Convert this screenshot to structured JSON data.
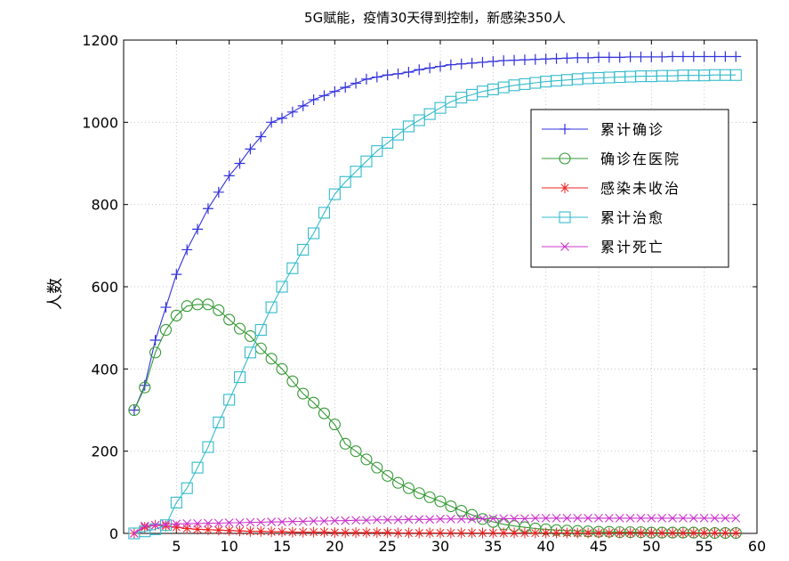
{
  "chart_data": {
    "type": "line",
    "title": "5G赋能，疫情30天得到控制，新感染350人",
    "xlabel": "",
    "ylabel": "人数",
    "xlim": [
      0,
      60
    ],
    "ylim": [
      0,
      1200
    ],
    "xticks": [
      5,
      10,
      15,
      20,
      25,
      30,
      35,
      40,
      45,
      50,
      55,
      60
    ],
    "yticks": [
      0,
      200,
      400,
      600,
      800,
      1000,
      1200
    ],
    "grid": true,
    "legend_position": "upper-right",
    "x": [
      1,
      2,
      3,
      4,
      5,
      6,
      7,
      8,
      9,
      10,
      11,
      12,
      13,
      14,
      15,
      16,
      17,
      18,
      19,
      20,
      21,
      22,
      23,
      24,
      25,
      26,
      27,
      28,
      29,
      30,
      31,
      32,
      33,
      34,
      35,
      36,
      37,
      38,
      39,
      40,
      41,
      42,
      43,
      44,
      45,
      46,
      47,
      48,
      49,
      50,
      51,
      52,
      53,
      54,
      55,
      56,
      57,
      58
    ],
    "series": [
      {
        "name": "累计确诊",
        "color": "#3333dd",
        "marker": "plus",
        "values": [
          300,
          360,
          470,
          550,
          630,
          690,
          740,
          790,
          830,
          870,
          900,
          935,
          965,
          1000,
          1010,
          1025,
          1040,
          1055,
          1065,
          1075,
          1085,
          1095,
          1105,
          1110,
          1115,
          1118,
          1122,
          1128,
          1132,
          1136,
          1140,
          1142,
          1144,
          1146,
          1148,
          1150,
          1151,
          1152,
          1153,
          1154,
          1155,
          1156,
          1157,
          1157,
          1158,
          1158,
          1158,
          1159,
          1159,
          1159,
          1159,
          1160,
          1160,
          1160,
          1160,
          1160,
          1160,
          1160
        ]
      },
      {
        "name": "确诊在医院",
        "color": "#339933",
        "marker": "circle",
        "values": [
          300,
          355,
          440,
          495,
          530,
          553,
          557,
          557,
          543,
          520,
          498,
          480,
          450,
          425,
          400,
          370,
          340,
          318,
          292,
          265,
          218,
          200,
          180,
          160,
          140,
          123,
          110,
          98,
          88,
          78,
          66,
          55,
          45,
          35,
          28,
          22,
          18,
          15,
          12,
          10,
          8,
          7,
          6,
          5,
          4,
          4,
          3,
          3,
          3,
          2,
          2,
          2,
          2,
          2,
          1,
          1,
          1,
          1
        ]
      },
      {
        "name": "感染未收治",
        "color": "#ee2222",
        "marker": "asterisk",
        "values": [
          0,
          15,
          20,
          18,
          15,
          12,
          10,
          9,
          8,
          7,
          6,
          5,
          5,
          4,
          4,
          3,
          3,
          3,
          3,
          2,
          2,
          2,
          2,
          2,
          2,
          1,
          1,
          1,
          1,
          1,
          1,
          1,
          1,
          1,
          1,
          1,
          1,
          1,
          1,
          1,
          1,
          1,
          1,
          1,
          1,
          1,
          1,
          1,
          1,
          1,
          1,
          1,
          1,
          1,
          1,
          1,
          1,
          1
        ]
      },
      {
        "name": "累计治愈",
        "color": "#33bbcc",
        "marker": "square",
        "values": [
          0,
          5,
          10,
          20,
          75,
          110,
          160,
          210,
          270,
          325,
          380,
          440,
          495,
          550,
          600,
          645,
          690,
          730,
          780,
          825,
          855,
          880,
          905,
          930,
          950,
          970,
          990,
          1005,
          1020,
          1035,
          1050,
          1060,
          1067,
          1075,
          1080,
          1085,
          1090,
          1093,
          1096,
          1099,
          1101,
          1103,
          1105,
          1107,
          1108,
          1109,
          1110,
          1111,
          1112,
          1112,
          1113,
          1113,
          1114,
          1114,
          1114,
          1115,
          1115,
          1115
        ]
      },
      {
        "name": "累计死亡",
        "color": "#cc33cc",
        "marker": "x",
        "values": [
          0,
          18,
          20,
          22,
          23,
          24,
          24,
          25,
          25,
          26,
          26,
          27,
          27,
          28,
          28,
          29,
          29,
          30,
          30,
          31,
          31,
          32,
          32,
          33,
          33,
          33,
          34,
          34,
          34,
          35,
          35,
          35,
          35,
          36,
          36,
          36,
          36,
          36,
          37,
          37,
          37,
          37,
          37,
          37,
          37,
          37,
          37,
          37,
          37,
          37,
          37,
          37,
          37,
          37,
          37,
          37,
          37,
          37
        ]
      }
    ]
  }
}
